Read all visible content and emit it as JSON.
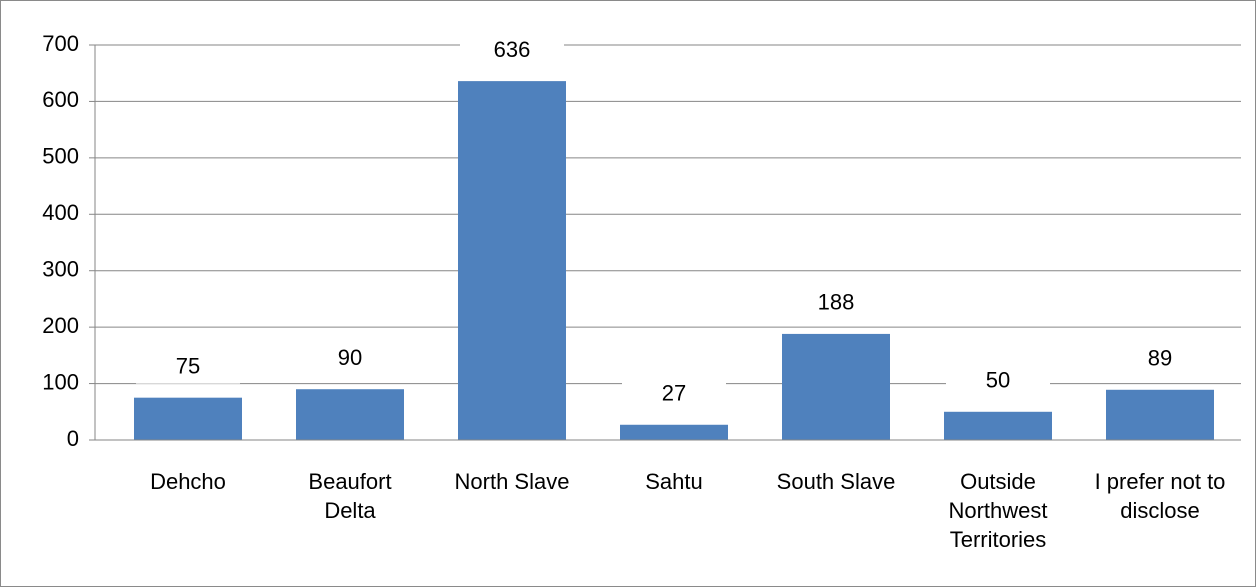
{
  "chart_data": {
    "type": "bar",
    "categories": [
      "Dehcho",
      "Beaufort Delta",
      "North Slave",
      "Sahtu",
      "South Slave",
      "Outside Northwest Territories",
      "I prefer not to disclose"
    ],
    "values": [
      75,
      90,
      636,
      27,
      188,
      50,
      89
    ],
    "color": "#4f81bd",
    "ylim": [
      0,
      700
    ],
    "yticks": [
      0,
      100,
      200,
      300,
      400,
      500,
      600,
      700
    ],
    "grid": true
  }
}
